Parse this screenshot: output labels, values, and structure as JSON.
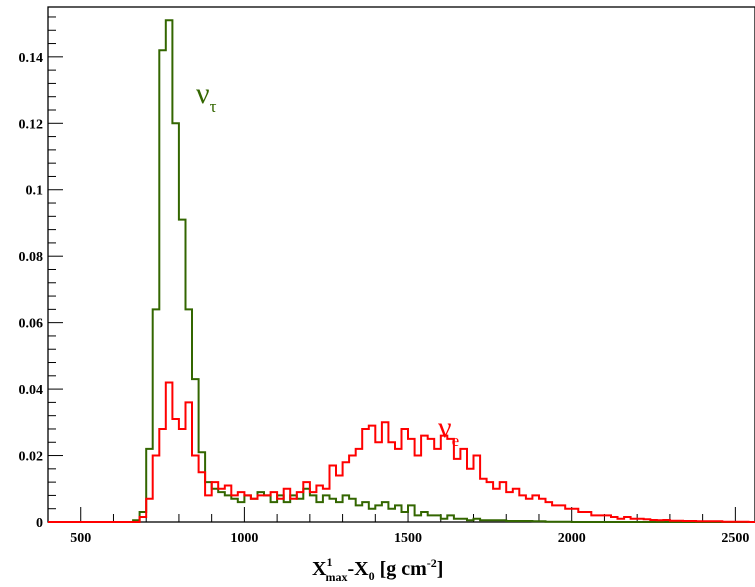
{
  "chart_data": {
    "type": "line",
    "style": "step-histogram",
    "xlabel_parts": {
      "main": "X",
      "sup": "1",
      "sub": "max",
      "rest": "-X",
      "sub2": "0",
      "units": " [g cm",
      "units_sup": "-2",
      "units_close": "]"
    },
    "xlim": [
      400,
      2560
    ],
    "ylim": [
      0,
      0.155
    ],
    "bin_start": 400,
    "bin_width": 20,
    "xticks": [
      500,
      1000,
      1500,
      2000,
      2500
    ],
    "xtick_labels": [
      "500",
      "1000",
      "1500",
      "2000",
      "2500"
    ],
    "yticks": [
      0,
      0.02,
      0.04,
      0.06,
      0.08,
      0.1,
      0.12,
      0.14
    ],
    "ytick_labels": [
      "0",
      "0.02",
      "0.04",
      "0.06",
      "0.08",
      "0.1",
      "0.12",
      "0.14"
    ],
    "grid": false,
    "legend": "none",
    "series": [
      {
        "label_greek": "ν",
        "label_sub": "τ",
        "color": "#336600",
        "values": [
          0,
          0,
          0,
          0,
          0,
          0,
          0,
          0,
          0,
          0,
          0,
          0,
          0,
          0.0005,
          0.003,
          0.022,
          0.064,
          0.142,
          0.151,
          0.12,
          0.091,
          0.064,
          0.043,
          0.021,
          0.012,
          0.01,
          0.009,
          0.008,
          0.007,
          0.006,
          0.008,
          0.007,
          0.009,
          0.008,
          0.006,
          0.008,
          0.006,
          0.008,
          0.007,
          0.01,
          0.008,
          0.006,
          0.008,
          0.007,
          0.006,
          0.008,
          0.007,
          0.005,
          0.006,
          0.004,
          0.005,
          0.006,
          0.004,
          0.005,
          0.003,
          0.005,
          0.002,
          0.003,
          0.002,
          0.002,
          0.001,
          0.002,
          0.001,
          0.001,
          0.0005,
          0.001,
          0.0005,
          0.0005,
          0.0005,
          0.0005,
          0.0003,
          0.0003,
          0.0003,
          0.0003,
          0.0002,
          0.0002,
          0.0001,
          0.0001,
          0.0001,
          0.0001,
          0,
          0,
          0,
          0,
          0,
          0,
          0,
          0,
          0,
          0,
          0,
          0,
          0,
          0,
          0,
          0,
          0,
          0,
          0,
          0,
          0,
          0,
          0,
          0,
          0,
          0,
          0,
          0
        ]
      },
      {
        "label_greek": "ν",
        "label_sub": "e",
        "color": "#ff0000",
        "values": [
          0,
          0,
          0,
          0,
          0,
          0,
          0,
          0,
          0,
          0,
          0,
          0,
          0,
          0,
          0.0015,
          0.007,
          0.02,
          0.028,
          0.042,
          0.031,
          0.028,
          0.036,
          0.02,
          0.015,
          0.008,
          0.012,
          0.01,
          0.011,
          0.008,
          0.009,
          0.008,
          0.007,
          0.008,
          0.008,
          0.009,
          0.007,
          0.01,
          0.007,
          0.009,
          0.012,
          0.009,
          0.011,
          0.01,
          0.017,
          0.014,
          0.018,
          0.02,
          0.022,
          0.028,
          0.029,
          0.024,
          0.03,
          0.024,
          0.022,
          0.028,
          0.025,
          0.02,
          0.026,
          0.025,
          0.022,
          0.026,
          0.025,
          0.019,
          0.022,
          0.016,
          0.02,
          0.013,
          0.012,
          0.01,
          0.012,
          0.009,
          0.01,
          0.008,
          0.007,
          0.008,
          0.007,
          0.006,
          0.005,
          0.005,
          0.004,
          0.004,
          0.003,
          0.003,
          0.002,
          0.002,
          0.002,
          0.0015,
          0.001,
          0.0015,
          0.001,
          0.001,
          0.0008,
          0.0006,
          0.0005,
          0.0006,
          0.0004,
          0.0004,
          0.0003,
          0.0003,
          0.0002,
          0.0002,
          0.0002,
          0.0002,
          0.0001,
          0.0001,
          0.0001,
          0.0001,
          0
        ]
      }
    ]
  }
}
